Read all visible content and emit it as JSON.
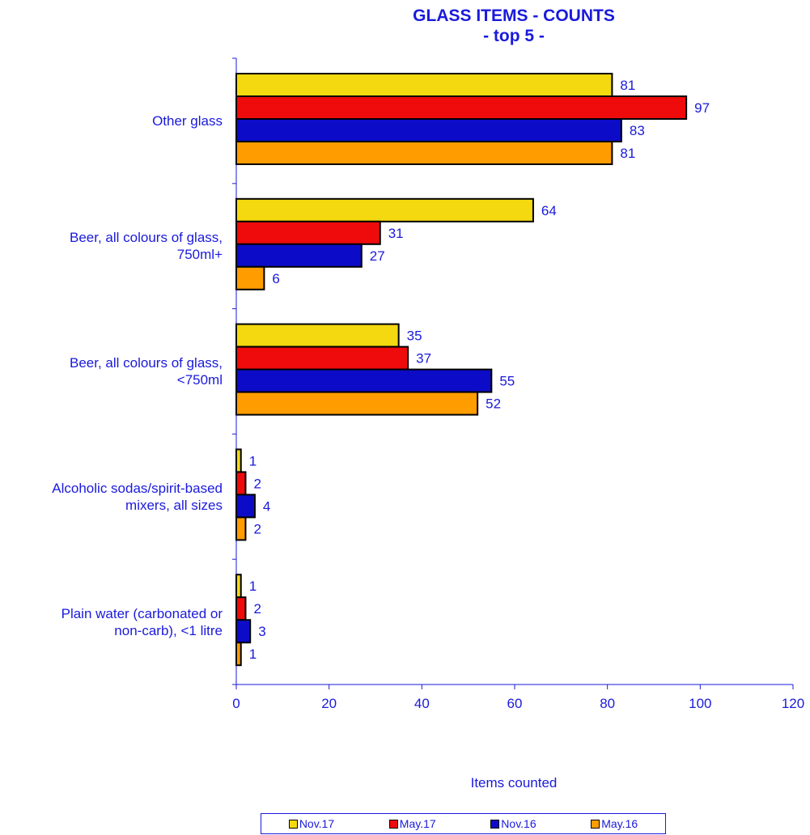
{
  "chart_data": {
    "type": "bar",
    "orientation": "horizontal",
    "title": "GLASS ITEMS - COUNTS",
    "subtitle": "- top 5 -",
    "xlabel": "Items counted",
    "ylabel": "",
    "xlim": [
      0,
      120
    ],
    "xticks": [
      "0",
      "20",
      "40",
      "60",
      "80",
      "100",
      "120"
    ],
    "grid": false,
    "legend_position": "bottom",
    "categories": [
      "Other glass",
      "Beer, all colours of glass, 750ml+",
      "Beer, all colours of glass, <750ml",
      "Alcoholic sodas/spirit-based mixers, all sizes",
      "Plain water (carbonated or non-carb), <1 litre"
    ],
    "category_lines": [
      [
        "Other glass"
      ],
      [
        "Beer, all colours of glass,",
        "750ml+"
      ],
      [
        "Beer, all colours of glass,",
        "<750ml"
      ],
      [
        "Alcoholic sodas/spirit-based",
        "mixers, all sizes"
      ],
      [
        "Plain water (carbonated or",
        "non-carb), <1 litre"
      ]
    ],
    "series": [
      {
        "name": "Nov.17",
        "color": "#f4d910",
        "values": [
          81,
          64,
          35,
          1,
          1
        ]
      },
      {
        "name": "May.17",
        "color": "#ef0b0b",
        "values": [
          97,
          31,
          37,
          2,
          2
        ]
      },
      {
        "name": "Nov.16",
        "color": "#0c0cc8",
        "values": [
          83,
          27,
          55,
          4,
          3
        ]
      },
      {
        "name": "May.16",
        "color": "#ff9c00",
        "values": [
          81,
          6,
          52,
          2,
          1
        ]
      }
    ],
    "text_color": "#1a1adc"
  }
}
